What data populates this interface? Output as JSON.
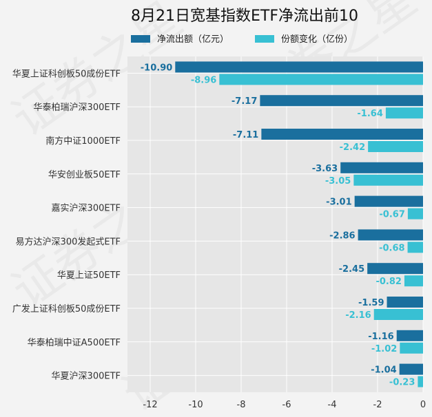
{
  "chart_data": {
    "type": "bar",
    "orientation": "horizontal",
    "title": "8月21日宽基指数ETF净流出前10",
    "categories": [
      "华夏上证科创板50成份ETF",
      "华泰柏瑞沪深300ETF",
      "南方中证1000ETF",
      "华安创业板50ETF",
      "嘉实沪深300ETF",
      "易方达沪深300发起式ETF",
      "华夏上证50ETF",
      "广发上证科创板50成份ETF",
      "华泰柏瑞中证A500ETF",
      "华夏沪深300ETF"
    ],
    "series": [
      {
        "name": "净流出额（亿元）",
        "color": "#1a6f9e",
        "values": [
          -10.9,
          -7.17,
          -7.11,
          -3.63,
          -3.01,
          -2.86,
          -2.45,
          -1.59,
          -1.16,
          -1.04
        ],
        "labels": [
          "-10.90",
          "-7.17",
          "-7.11",
          "-3.63",
          "-3.01",
          "-2.86",
          "-2.45",
          "-1.59",
          "-1.16",
          "-1.04"
        ]
      },
      {
        "name": "份额变化（亿份）",
        "color": "#38c0d3",
        "values": [
          -8.96,
          -1.64,
          -2.42,
          -3.05,
          -0.67,
          -0.68,
          -0.82,
          -2.16,
          -1.02,
          -0.23
        ],
        "labels": [
          "-8.96",
          "-1.64",
          "-2.42",
          "-3.05",
          "-0.67",
          "-0.68",
          "-0.82",
          "-2.16",
          "-1.02",
          "-0.23"
        ]
      }
    ],
    "xlim": [
      -13,
      0
    ],
    "xticks": [
      -12,
      -10,
      -8,
      -6,
      -4,
      -2,
      0
    ],
    "grid": true,
    "legend": "top"
  },
  "watermark": "证券之星"
}
